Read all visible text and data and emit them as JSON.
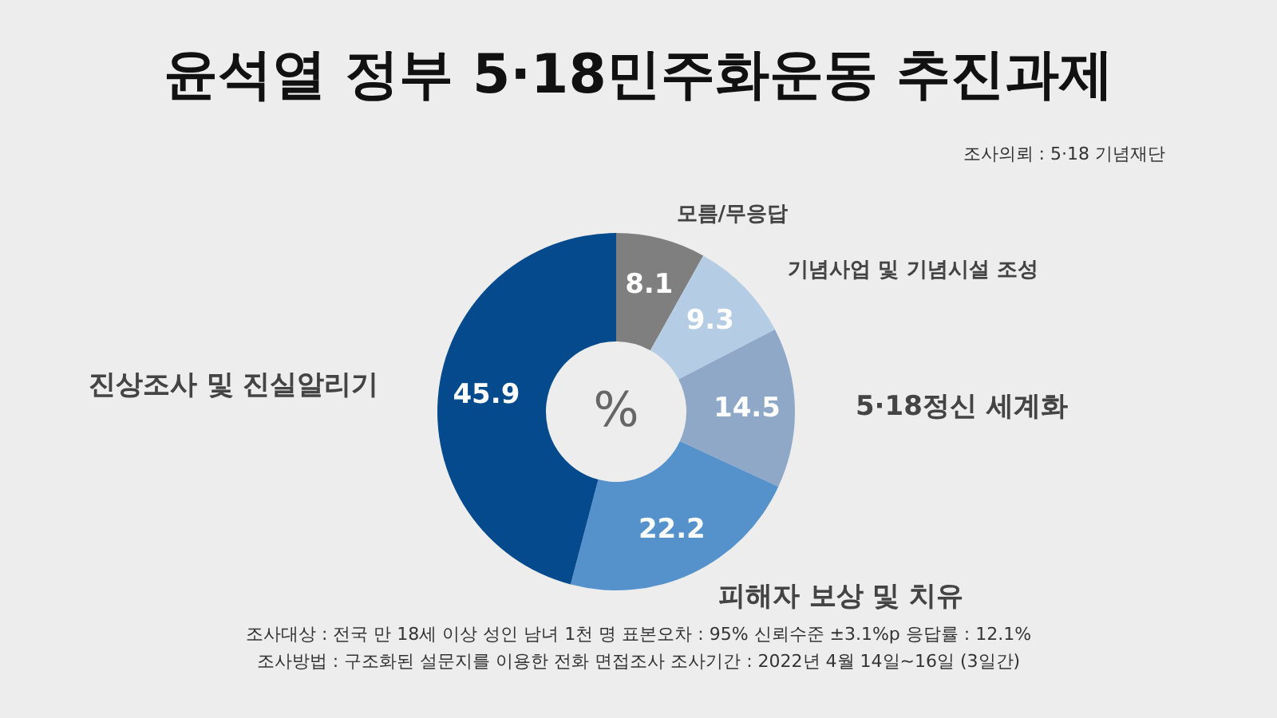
{
  "chart_data": {
    "type": "donut",
    "title": "윤석열 정부 5·18민주화운동 추진과제",
    "categories": [
      "모름/무응답",
      "기념사업 및 기념시설 조성",
      "5·18정신 세계화",
      "피해자 보상 및 치유",
      "진상조사 및 진실알리기"
    ],
    "values": [
      8.1,
      9.3,
      14.5,
      22.2,
      45.9
    ],
    "colors": [
      "#7f7f7f",
      "#b4cde4",
      "#8fa8c8",
      "#5592cc",
      "#054a8c"
    ],
    "data_labels": true,
    "annotations": [
      "%",
      "조사의뢰 : 5·18 기념재단",
      "조사대상 : 전국 만 18세 이상 성인 남녀 1천 명   표본오차 : 95% 신뢰수준 ±3.1%p   응답률 : 12.1%",
      "조사방법 : 구조화된 설문지를 이용한 전화 면접조사   조사기간 : 2022년 4월 14일~16일 (3일간)"
    ]
  }
}
